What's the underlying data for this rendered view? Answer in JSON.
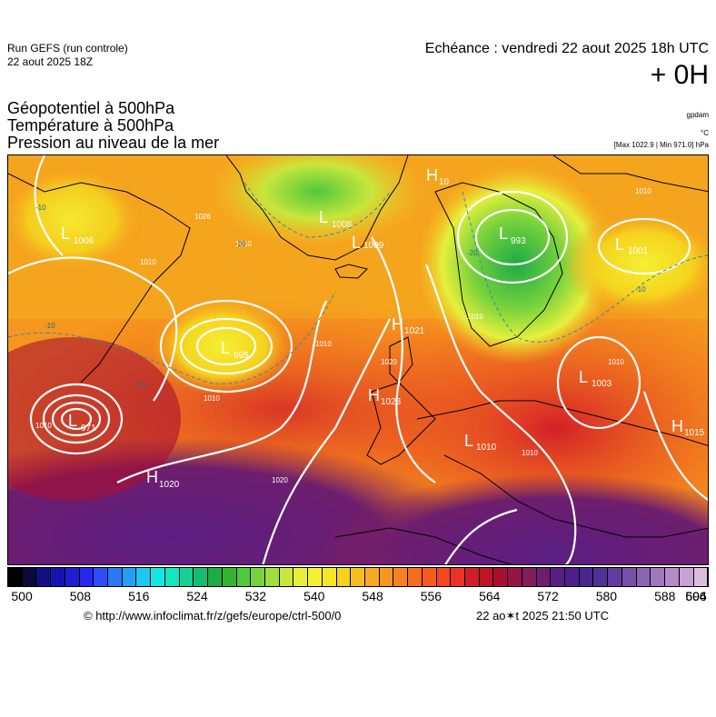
{
  "header": {
    "run_title": "Run GEFS (run controle)",
    "run_date": "22 aout 2025 18Z",
    "valid_time": "Echéance : vendredi 22 aout 2025 18h UTC",
    "lead_time": "+ 0H"
  },
  "params": {
    "line1": "Géopotentiel à 500hPa",
    "line2": "Température à 500hPa",
    "line3": "Pression au niveau de la mer"
  },
  "units": {
    "geopotential": "gpdam",
    "temperature": "°C",
    "pressure_range": "[Max 1022.9 | Min 971.0] hPa"
  },
  "pressure_centers": [
    {
      "type": "L",
      "value": "1006"
    },
    {
      "type": "L",
      "value": "995"
    },
    {
      "type": "L",
      "value": "971"
    },
    {
      "type": "H",
      "value": "1020"
    },
    {
      "type": "L",
      "value": "1008"
    },
    {
      "type": "L",
      "value": "1009"
    },
    {
      "type": "H",
      "value": "1021"
    },
    {
      "type": "H",
      "value": "1023"
    },
    {
      "type": "L",
      "value": "993"
    },
    {
      "type": "H",
      "value": "10"
    },
    {
      "type": "L",
      "value": "1001"
    },
    {
      "type": "L",
      "value": "1003"
    },
    {
      "type": "H",
      "value": "1015"
    },
    {
      "type": "L",
      "value": "1010"
    }
  ],
  "isobar_labels": [
    "1026",
    "1010",
    "1010",
    "1010",
    "1010",
    "1020",
    "1020",
    "1010",
    "1010",
    "1010",
    "1010",
    "1010"
  ],
  "temp_labels": [
    "-10",
    "-10",
    "-10",
    "-20",
    "-20",
    "-10"
  ],
  "colors": {
    "scale": [
      "#000000",
      "#0a0a3c",
      "#101080",
      "#1414b0",
      "#1e1ed2",
      "#2828f0",
      "#2a50f5",
      "#2a78f5",
      "#22a0f5",
      "#1cc8f0",
      "#14e6e6",
      "#14e6c0",
      "#14d296",
      "#14be6e",
      "#1eaa46",
      "#32b432",
      "#50c83c",
      "#78d23c",
      "#a0dc3c",
      "#c8e63c",
      "#e6f03c",
      "#f5f032",
      "#f5e628",
      "#f5d21e",
      "#f5be1e",
      "#f5aa1e",
      "#f5961e",
      "#f5821e",
      "#f56e1e",
      "#f55a1e",
      "#f5461e",
      "#eb3228",
      "#d21e28",
      "#be1428",
      "#aa0f32",
      "#961446",
      "#821e5a",
      "#6e1e6e",
      "#5a1e82",
      "#501e8c",
      "#46288c",
      "#503296",
      "#643ca0",
      "#7850aa",
      "#8c64b4",
      "#a078be",
      "#b48cc8",
      "#c8a0d2",
      "#dcbedc"
    ]
  },
  "colorbar": {
    "ticks": [
      "500",
      "508",
      "516",
      "524",
      "532",
      "540",
      "548",
      "556",
      "564",
      "572",
      "580",
      "588",
      "596",
      "604"
    ]
  },
  "footer": {
    "credit": "© http://www.infoclimat.fr/z/gefs/europe/ctrl-500/0",
    "timestamp": "22 ao✶t 2025 21:50 UTC"
  }
}
